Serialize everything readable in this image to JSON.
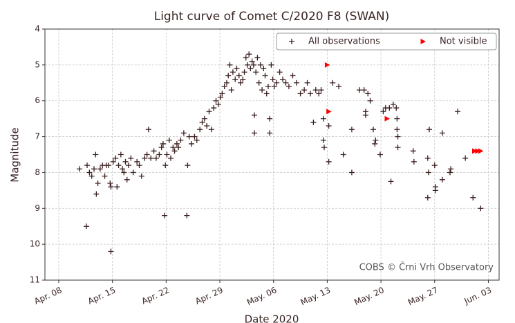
{
  "chart_data": {
    "type": "scatter",
    "title": "Light curve of Comet C/2020 F8 (SWAN)",
    "x_label": "Date 2020",
    "y_label": "Magnitude",
    "annotation": "COBS © Črni Vrh Observatory",
    "xlim": [
      97.2,
      156.4
    ],
    "xticks": [
      {
        "value": 99,
        "label": "Apr. 08"
      },
      {
        "value": 106,
        "label": "Apr. 15"
      },
      {
        "value": 113,
        "label": "Apr. 22"
      },
      {
        "value": 120,
        "label": "Apr. 29"
      },
      {
        "value": 127,
        "label": "May. 06"
      },
      {
        "value": 134,
        "label": "May. 13"
      },
      {
        "value": 141,
        "label": "May. 20"
      },
      {
        "value": 148,
        "label": "May. 27"
      },
      {
        "value": 155,
        "label": "Jun. 03"
      }
    ],
    "ylim": [
      4,
      11
    ],
    "y_inverted": true,
    "yticks": [
      4,
      5,
      6,
      7,
      8,
      9,
      10,
      11
    ],
    "grid": true,
    "legend": "upper right",
    "series": [
      {
        "name": "All observations",
        "marker": "plus",
        "color": "#3a1c1c",
        "x": [
          101.7,
          102.6,
          102.7,
          103.0,
          103.3,
          103.6,
          103.8,
          103.9,
          104.1,
          104.4,
          104.7,
          105.0,
          105.2,
          105.5,
          105.7,
          105.8,
          105.8,
          106.1,
          106.4,
          106.6,
          106.8,
          107.1,
          107.3,
          107.5,
          107.7,
          107.9,
          108.1,
          108.4,
          108.7,
          109.2,
          109.5,
          109.8,
          110.2,
          110.5,
          110.7,
          111.0,
          111.4,
          111.7,
          112.1,
          112.4,
          112.6,
          112.8,
          112.9,
          113.1,
          113.4,
          113.6,
          113.9,
          114.1,
          114.4,
          114.6,
          114.9,
          115.3,
          115.8,
          115.7,
          116.0,
          116.3,
          116.7,
          117.0,
          117.4,
          117.7,
          118.0,
          118.3,
          118.6,
          118.9,
          119.2,
          119.5,
          119.8,
          120.1,
          120.3,
          120.6,
          120.9,
          121.1,
          121.3,
          121.5,
          121.7,
          122.0,
          122.2,
          122.5,
          122.7,
          123.0,
          123.2,
          123.4,
          123.6,
          123.8,
          124.0,
          124.2,
          124.4,
          124.5,
          124.5,
          124.7,
          124.9,
          125.1,
          125.3,
          125.5,
          125.7,
          125.9,
          126.1,
          126.3,
          126.5,
          126.5,
          126.7,
          126.9,
          127.1,
          127.4,
          127.8,
          128.2,
          128.6,
          129.0,
          129.5,
          130.0,
          130.5,
          131.0,
          131.4,
          131.8,
          132.2,
          132.5,
          132.9,
          133.2,
          133.5,
          133.5,
          133.6,
          134.2,
          134.2,
          134.7,
          135.5,
          136.1,
          137.2,
          137.2,
          138.2,
          138.8,
          139.0,
          139.0,
          139.3,
          139.6,
          140.0,
          140.2,
          140.3,
          140.9,
          141.3,
          141.6,
          142.1,
          142.3,
          142.6,
          143.0,
          143.1,
          143.1,
          143.2,
          143.2,
          145.2,
          145.3,
          147.1,
          147.1,
          147.3,
          147.2,
          148.0,
          148.1,
          148.1,
          149.0,
          149.0,
          150.0,
          150.1,
          151.0,
          152.0,
          153.0,
          154.0
        ],
        "values": [
          7.9,
          9.5,
          7.8,
          8.0,
          8.1,
          7.9,
          7.5,
          8.6,
          8.3,
          7.9,
          7.8,
          8.1,
          7.8,
          7.8,
          8.3,
          8.4,
          10.2,
          7.7,
          7.6,
          8.4,
          7.8,
          7.5,
          7.9,
          8.0,
          7.7,
          8.2,
          7.8,
          7.6,
          8.0,
          7.7,
          7.8,
          8.1,
          7.6,
          7.5,
          6.8,
          7.6,
          7.4,
          7.6,
          7.5,
          7.3,
          7.2,
          9.2,
          7.8,
          7.5,
          7.1,
          7.6,
          7.3,
          7.4,
          7.2,
          7.3,
          7.1,
          6.9,
          7.8,
          9.2,
          7.0,
          7.2,
          7.0,
          7.1,
          6.8,
          6.6,
          6.5,
          6.7,
          6.3,
          6.8,
          6.2,
          6.0,
          6.1,
          5.9,
          5.8,
          5.6,
          5.5,
          5.3,
          5.0,
          5.7,
          5.2,
          5.4,
          5.1,
          5.3,
          5.5,
          5.4,
          5.2,
          4.8,
          5.0,
          4.7,
          5.1,
          4.9,
          5.0,
          6.4,
          6.9,
          5.2,
          4.8,
          5.5,
          5.0,
          5.7,
          5.1,
          5.3,
          5.8,
          5.6,
          6.5,
          6.9,
          5.0,
          5.4,
          5.6,
          5.5,
          5.2,
          5.4,
          5.5,
          5.6,
          5.3,
          5.5,
          5.8,
          5.7,
          5.5,
          5.8,
          6.6,
          5.7,
          5.8,
          5.7,
          6.5,
          7.1,
          7.3,
          6.7,
          7.7,
          5.5,
          5.6,
          7.5,
          6.8,
          8.0,
          5.7,
          5.7,
          6.3,
          6.4,
          5.8,
          6.0,
          6.8,
          7.2,
          7.1,
          7.5,
          6.3,
          6.2,
          6.2,
          8.25,
          6.1,
          6.2,
          6.5,
          6.8,
          7.0,
          7.3,
          7.4,
          7.7,
          7.6,
          8.7,
          6.8,
          8.0,
          7.8,
          8.4,
          8.5,
          8.2,
          6.9,
          8.0,
          7.9,
          6.3,
          7.6,
          8.7,
          9.0
        ]
      },
      {
        "name": "Not visible",
        "marker": "triangle-right",
        "color": "#ff0000",
        "x": [
          134.0,
          134.2,
          141.8,
          153.2,
          153.6,
          154.0
        ],
        "values": [
          5.0,
          6.3,
          6.5,
          7.4,
          7.4,
          7.4
        ]
      }
    ]
  }
}
